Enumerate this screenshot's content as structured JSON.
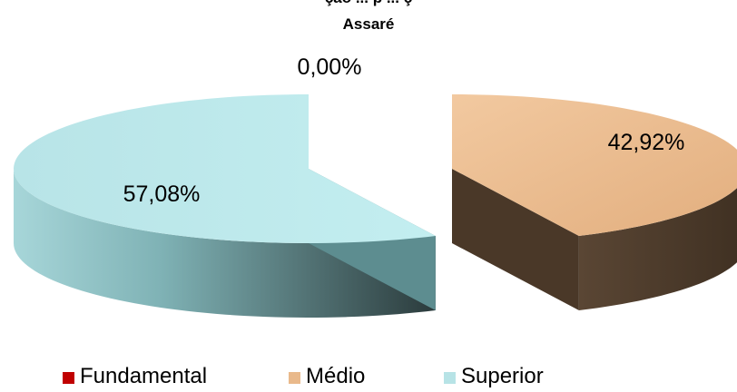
{
  "chart_data": {
    "type": "pie",
    "style": "3d-exploded",
    "title_line1": "ção ... p ... ç",
    "title_line2": "Assaré",
    "categories": [
      "Fundamental",
      "Médio",
      "Superior"
    ],
    "values": [
      0.0,
      42.92,
      57.08
    ],
    "data_labels": [
      "0,00%",
      "42,92%",
      "57,08%"
    ],
    "colors": {
      "Fundamental": "#c00000",
      "Médio": "#e9b98b",
      "Superior": "#b7e3e6"
    },
    "legend_position": "bottom"
  }
}
